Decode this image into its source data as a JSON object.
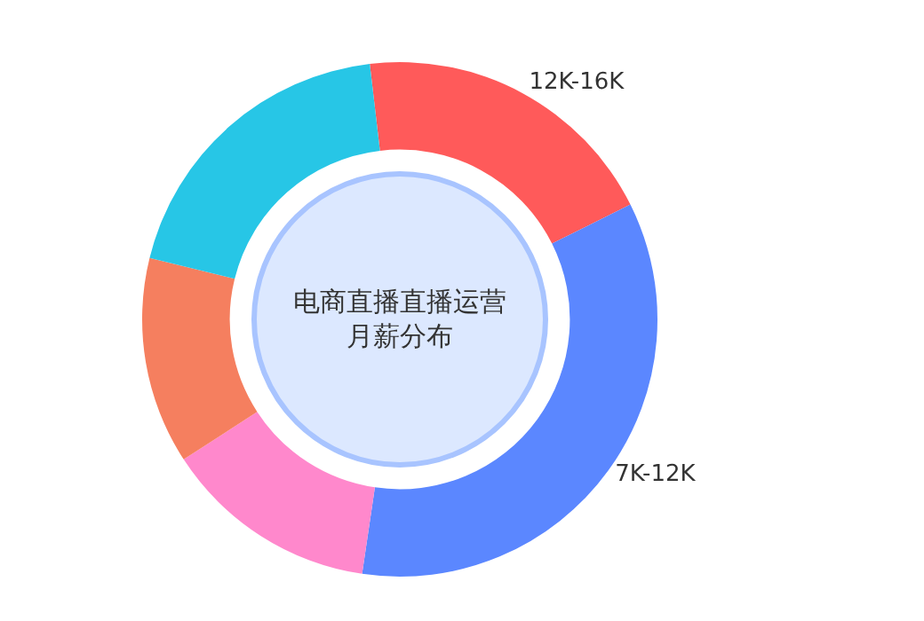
{
  "chart_data": {
    "type": "donut",
    "title": "电商直播直播运营月薪分布",
    "categories": [
      "12K-16K",
      "7K-12K",
      null,
      null,
      null
    ],
    "values": [
      19.5,
      34.7,
      13.5,
      13,
      19.3
    ],
    "colors": [
      "#ff5a5a",
      "#5b87ff",
      "#ff88cc",
      "#f57f5f",
      "#27c6e6"
    ]
  }
}
